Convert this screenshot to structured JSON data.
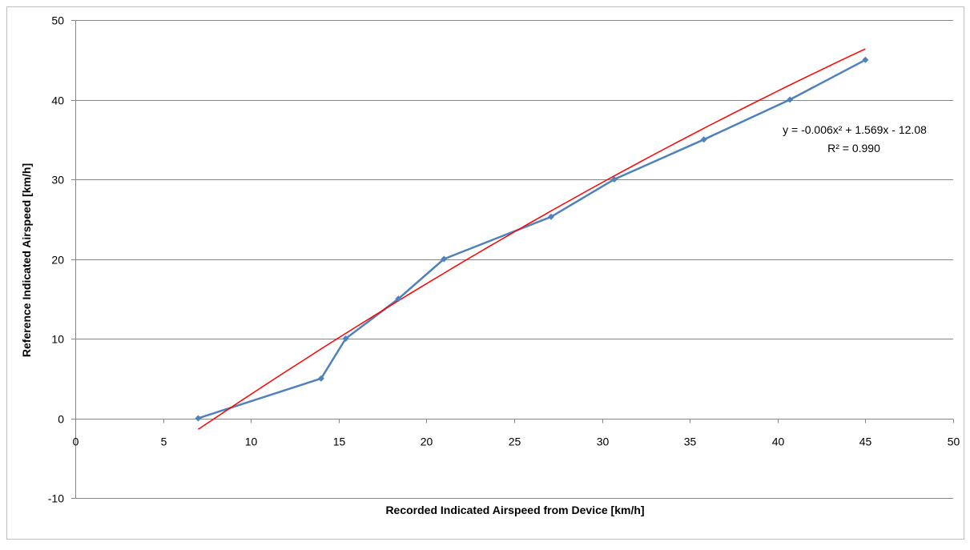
{
  "chart_data": {
    "type": "scatter",
    "title": "",
    "xlabel": "Recorded Indicated Airspeed from Device [km/h]",
    "ylabel": "Reference Indicated Airspeed [km/h]",
    "xlim": [
      0,
      50
    ],
    "ylim": [
      -10,
      50
    ],
    "x_ticks": [
      0,
      5,
      10,
      15,
      20,
      25,
      30,
      35,
      40,
      45,
      50
    ],
    "y_ticks": [
      -10,
      0,
      10,
      20,
      30,
      40,
      50
    ],
    "x_tick_labels": [
      "0",
      "5",
      "10",
      "15",
      "20",
      "25",
      "30",
      "35",
      "40",
      "45",
      "50"
    ],
    "y_tick_labels": [
      "-10",
      "0",
      "10",
      "20",
      "30",
      "40",
      "50"
    ],
    "grid": "horizontal",
    "series": [
      {
        "style": "line-with-markers",
        "marker": "diamond",
        "color": "#4F81BD",
        "x": [
          7.0,
          14.0,
          15.4,
          18.4,
          21.0,
          27.1,
          30.7,
          35.8,
          40.7,
          45.0
        ],
        "y": [
          0,
          5,
          10,
          15,
          20,
          25.3,
          30,
          35,
          40,
          45
        ]
      }
    ],
    "trendline": {
      "type": "polynomial",
      "color": "#FF0000",
      "coefficients": {
        "a": -0.006,
        "b": 1.569,
        "c": -12.08
      },
      "x_range": [
        7.0,
        45.0
      ],
      "equation_label": "y = -0.006x² + 1.569x - 12.08",
      "r2_label": "R² = 0.990"
    }
  }
}
